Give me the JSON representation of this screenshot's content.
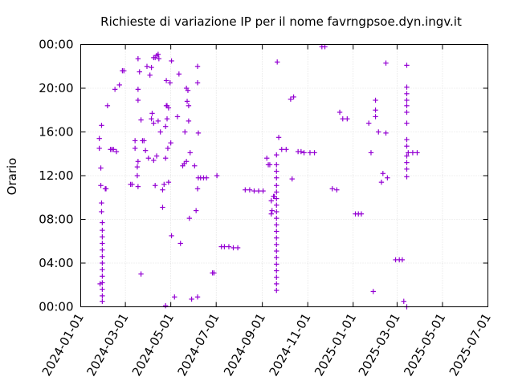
{
  "chart_data": {
    "type": "scatter",
    "title": "Richieste di variazione IP per il nome favrngpsoe.dyn.ingv.it",
    "xlabel": "",
    "ylabel": "Orario",
    "x_ticks": [
      "2024-01-01",
      "2024-03-01",
      "2024-05-01",
      "2024-07-01",
      "2024-09-01",
      "2024-11-01",
      "2025-01-01",
      "2025-03-01",
      "2025-05-01",
      "2025-07-01"
    ],
    "y_ticks": [
      "00:00",
      "04:00",
      "08:00",
      "12:00",
      "16:00",
      "20:00",
      "00:00"
    ],
    "xlim": [
      "2024-01-01",
      "2025-07-01"
    ],
    "ylim": [
      0,
      24
    ],
    "y_unit": "hours",
    "grid": true,
    "marker": "plus",
    "color": "#9400d3",
    "series": [
      {
        "points": [
          [
            "2024-01-26",
            14.5
          ],
          [
            "2024-01-26",
            15.4
          ],
          [
            "2024-01-28",
            12.7
          ],
          [
            "2024-01-28",
            11.1
          ],
          [
            "2024-01-29",
            9.5
          ],
          [
            "2024-01-29",
            8.7
          ],
          [
            "2024-01-30",
            7.7
          ],
          [
            "2024-01-30",
            7.0
          ],
          [
            "2024-01-30",
            6.4
          ],
          [
            "2024-01-30",
            5.8
          ],
          [
            "2024-01-30",
            5.2
          ],
          [
            "2024-01-30",
            4.6
          ],
          [
            "2024-01-30",
            4.0
          ],
          [
            "2024-01-30",
            3.4
          ],
          [
            "2024-01-30",
            2.8
          ],
          [
            "2024-01-30",
            2.2
          ],
          [
            "2024-01-30",
            1.6
          ],
          [
            "2024-01-30",
            1.0
          ],
          [
            "2024-01-30",
            0.5
          ],
          [
            "2024-01-27",
            2.1
          ],
          [
            "2024-01-29",
            16.6
          ],
          [
            "2024-02-03",
            10.8
          ],
          [
            "2024-02-04",
            10.8
          ],
          [
            "2024-02-06",
            18.4
          ],
          [
            "2024-02-10",
            14.4
          ],
          [
            "2024-02-12",
            14.4
          ],
          [
            "2024-02-14",
            14.4
          ],
          [
            "2024-02-18",
            14.2
          ],
          [
            "2024-02-16",
            19.9
          ],
          [
            "2024-02-22",
            20.3
          ],
          [
            "2024-02-26",
            21.6
          ],
          [
            "2024-02-28",
            21.6
          ],
          [
            "2024-03-08",
            11.2
          ],
          [
            "2024-03-10",
            11.2
          ],
          [
            "2024-03-14",
            14.5
          ],
          [
            "2024-03-14",
            15.2
          ],
          [
            "2024-03-17",
            12.0
          ],
          [
            "2024-03-17",
            12.8
          ],
          [
            "2024-03-18",
            13.3
          ],
          [
            "2024-03-18",
            18.9
          ],
          [
            "2024-03-18",
            19.9
          ],
          [
            "2024-03-18",
            22.7
          ],
          [
            "2024-03-20",
            21.5
          ],
          [
            "2024-03-18",
            11.0
          ],
          [
            "2024-03-22",
            17.1
          ],
          [
            "2024-03-24",
            15.2
          ],
          [
            "2024-03-26",
            15.2
          ],
          [
            "2024-03-28",
            14.3
          ],
          [
            "2024-03-22",
            3.0
          ],
          [
            "2024-03-30",
            22.0
          ],
          [
            "2024-04-01",
            13.6
          ],
          [
            "2024-04-03",
            21.2
          ],
          [
            "2024-04-05",
            21.9
          ],
          [
            "2024-04-05",
            17.2
          ],
          [
            "2024-04-06",
            17.7
          ],
          [
            "2024-04-08",
            16.8
          ],
          [
            "2024-04-08",
            22.8
          ],
          [
            "2024-04-10",
            22.8
          ],
          [
            "2024-04-12",
            23.0
          ],
          [
            "2024-04-14",
            23.1
          ],
          [
            "2024-04-15",
            22.7
          ],
          [
            "2024-04-08",
            13.4
          ],
          [
            "2024-04-10",
            11.1
          ],
          [
            "2024-04-12",
            13.8
          ],
          [
            "2024-04-14",
            17.0
          ],
          [
            "2024-04-17",
            16.0
          ],
          [
            "2024-04-20",
            9.1
          ],
          [
            "2024-04-20",
            10.7
          ],
          [
            "2024-04-22",
            11.2
          ],
          [
            "2024-04-24",
            13.6
          ],
          [
            "2024-04-24",
            16.5
          ],
          [
            "2024-04-25",
            20.7
          ],
          [
            "2024-04-25",
            18.4
          ],
          [
            "2024-04-26",
            17.2
          ],
          [
            "2024-04-26",
            18.4
          ],
          [
            "2024-04-27",
            14.5
          ],
          [
            "2024-04-28",
            11.4
          ],
          [
            "2024-04-28",
            18.2
          ],
          [
            "2024-04-30",
            20.5
          ],
          [
            "2024-05-01",
            15.0
          ],
          [
            "2024-05-02",
            22.5
          ],
          [
            "2024-05-02",
            6.5
          ],
          [
            "2024-04-24",
            0.1
          ],
          [
            "2024-05-06",
            0.9
          ],
          [
            "2024-05-10",
            17.4
          ],
          [
            "2024-05-12",
            21.3
          ],
          [
            "2024-05-14",
            5.8
          ],
          [
            "2024-05-17",
            12.9
          ],
          [
            "2024-05-19",
            13.1
          ],
          [
            "2024-05-22",
            13.3
          ],
          [
            "2024-05-20",
            16.0
          ],
          [
            "2024-05-22",
            20.0
          ],
          [
            "2024-05-23",
            18.8
          ],
          [
            "2024-05-24",
            19.8
          ],
          [
            "2024-05-25",
            17.0
          ],
          [
            "2024-05-25",
            18.4
          ],
          [
            "2024-05-26",
            8.1
          ],
          [
            "2024-05-27",
            14.1
          ],
          [
            "2024-05-29",
            0.7
          ],
          [
            "2024-06-02",
            12.9
          ],
          [
            "2024-06-04",
            8.8
          ],
          [
            "2024-06-06",
            10.8
          ],
          [
            "2024-06-07",
            15.9
          ],
          [
            "2024-06-06",
            22.0
          ],
          [
            "2024-06-06",
            20.5
          ],
          [
            "2024-06-06",
            0.9
          ],
          [
            "2024-06-07",
            11.8
          ],
          [
            "2024-06-10",
            11.8
          ],
          [
            "2024-06-14",
            11.8
          ],
          [
            "2024-06-18",
            11.8
          ],
          [
            "2024-06-26",
            3.1
          ],
          [
            "2024-06-28",
            3.1
          ],
          [
            "2024-07-02",
            12.0
          ],
          [
            "2024-07-08",
            5.5
          ],
          [
            "2024-07-12",
            5.5
          ],
          [
            "2024-07-18",
            5.5
          ],
          [
            "2024-07-24",
            5.4
          ],
          [
            "2024-07-30",
            5.4
          ],
          [
            "2024-08-09",
            10.7
          ],
          [
            "2024-08-15",
            10.7
          ],
          [
            "2024-08-21",
            10.6
          ],
          [
            "2024-08-27",
            10.6
          ],
          [
            "2024-09-02",
            10.6
          ],
          [
            "2024-09-07",
            13.6
          ],
          [
            "2024-09-09",
            13.0
          ],
          [
            "2024-09-11",
            13.0
          ],
          [
            "2024-09-13",
            9.7
          ],
          [
            "2024-09-13",
            8.5
          ],
          [
            "2024-09-14",
            8.8
          ],
          [
            "2024-09-16",
            10.1
          ],
          [
            "2024-09-17",
            10.1
          ],
          [
            "2024-09-20",
            13.9
          ],
          [
            "2024-09-20",
            13.0
          ],
          [
            "2024-09-20",
            12.4
          ],
          [
            "2024-09-20",
            11.8
          ],
          [
            "2024-09-20",
            11.1
          ],
          [
            "2024-09-20",
            10.5
          ],
          [
            "2024-09-20",
            9.9
          ],
          [
            "2024-09-20",
            9.3
          ],
          [
            "2024-09-20",
            8.7
          ],
          [
            "2024-09-20",
            8.1
          ],
          [
            "2024-09-20",
            7.5
          ],
          [
            "2024-09-20",
            6.9
          ],
          [
            "2024-09-20",
            6.3
          ],
          [
            "2024-09-20",
            5.7
          ],
          [
            "2024-09-20",
            5.1
          ],
          [
            "2024-09-20",
            4.5
          ],
          [
            "2024-09-20",
            3.9
          ],
          [
            "2024-09-20",
            3.3
          ],
          [
            "2024-09-20",
            2.7
          ],
          [
            "2024-09-20",
            2.1
          ],
          [
            "2024-09-20",
            1.5
          ],
          [
            "2024-09-21",
            22.4
          ],
          [
            "2024-09-23",
            15.5
          ],
          [
            "2024-09-27",
            14.4
          ],
          [
            "2024-10-03",
            14.4
          ],
          [
            "2024-10-09",
            19.0
          ],
          [
            "2024-10-11",
            11.7
          ],
          [
            "2024-10-13",
            19.2
          ],
          [
            "2024-10-19",
            14.2
          ],
          [
            "2024-10-23",
            14.2
          ],
          [
            "2024-10-27",
            14.1
          ],
          [
            "2024-11-04",
            14.1
          ],
          [
            "2024-11-10",
            14.1
          ],
          [
            "2024-11-20",
            23.8
          ],
          [
            "2024-11-24",
            23.8
          ],
          [
            "2024-12-04",
            10.8
          ],
          [
            "2024-12-10",
            10.7
          ],
          [
            "2024-12-14",
            17.8
          ],
          [
            "2024-12-18",
            17.2
          ],
          [
            "2024-12-24",
            17.2
          ],
          [
            "2025-01-04",
            8.5
          ],
          [
            "2025-01-08",
            8.5
          ],
          [
            "2025-01-12",
            8.5
          ],
          [
            "2025-01-22",
            16.8
          ],
          [
            "2025-01-25",
            14.1
          ],
          [
            "2025-01-28",
            1.4
          ],
          [
            "2025-01-31",
            18.9
          ],
          [
            "2025-01-31",
            18.0
          ],
          [
            "2025-01-31",
            17.4
          ],
          [
            "2025-02-04",
            16.0
          ],
          [
            "2025-02-08",
            11.4
          ],
          [
            "2025-02-10",
            12.2
          ],
          [
            "2025-02-16",
            11.8
          ],
          [
            "2025-02-14",
            15.9
          ],
          [
            "2025-02-14",
            22.3
          ],
          [
            "2025-02-27",
            4.3
          ],
          [
            "2025-03-04",
            4.3
          ],
          [
            "2025-03-08",
            4.3
          ],
          [
            "2025-03-10",
            0.5
          ],
          [
            "2025-03-14",
            22.1
          ],
          [
            "2025-03-14",
            20.1
          ],
          [
            "2025-03-14",
            19.5
          ],
          [
            "2025-03-14",
            18.9
          ],
          [
            "2025-03-14",
            18.4
          ],
          [
            "2025-03-14",
            17.8
          ],
          [
            "2025-03-14",
            16.8
          ],
          [
            "2025-03-14",
            15.3
          ],
          [
            "2025-03-14",
            14.7
          ],
          [
            "2025-03-14",
            13.8
          ],
          [
            "2025-03-14",
            13.2
          ],
          [
            "2025-03-14",
            12.6
          ],
          [
            "2025-03-14",
            11.9
          ],
          [
            "2025-03-16",
            14.1
          ],
          [
            "2025-03-22",
            14.1
          ],
          [
            "2025-03-28",
            14.1
          ],
          [
            "2025-03-14",
            0.0
          ]
        ]
      }
    ]
  }
}
